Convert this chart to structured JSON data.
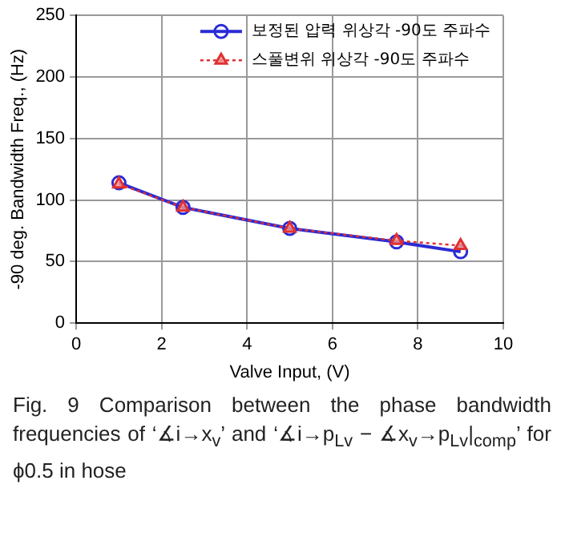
{
  "chart_data": {
    "type": "line",
    "xlabel": "Valve Input, (V)",
    "ylabel": "-90 deg. Bandwidth Freq., (Hz)",
    "x": [
      1,
      2.5,
      5,
      7.5,
      9
    ],
    "xlim": [
      0,
      10
    ],
    "xticks": [
      0,
      2,
      4,
      6,
      8,
      10
    ],
    "ylim": [
      0,
      250
    ],
    "yticks": [
      0,
      50,
      100,
      150,
      200,
      250
    ],
    "grid": true,
    "legend": "top right",
    "series": [
      {
        "name": "보정된 압력 위상각 -90도 주파수",
        "color": "#2b2bd6",
        "marker": "circle",
        "line_style": "solid",
        "values": [
          114,
          94,
          77,
          66,
          58
        ]
      },
      {
        "name": "스풀변위 위상각 -90도 주파수",
        "color": "#e03030",
        "marker": "triangle",
        "line_style": "dotted",
        "values": [
          113,
          94,
          77,
          67,
          63
        ]
      }
    ],
    "annotations": [
      "Fig. 9 Comparison between the phase bandwidth frequencies of ‘∡i→x$_{v}$’ and ‘∡i→p$_{Lv}$ − ∡x$_{v}$→p$_{Lv}$|$_{comp}$’ for ϕ0.5 in hose"
    ]
  }
}
